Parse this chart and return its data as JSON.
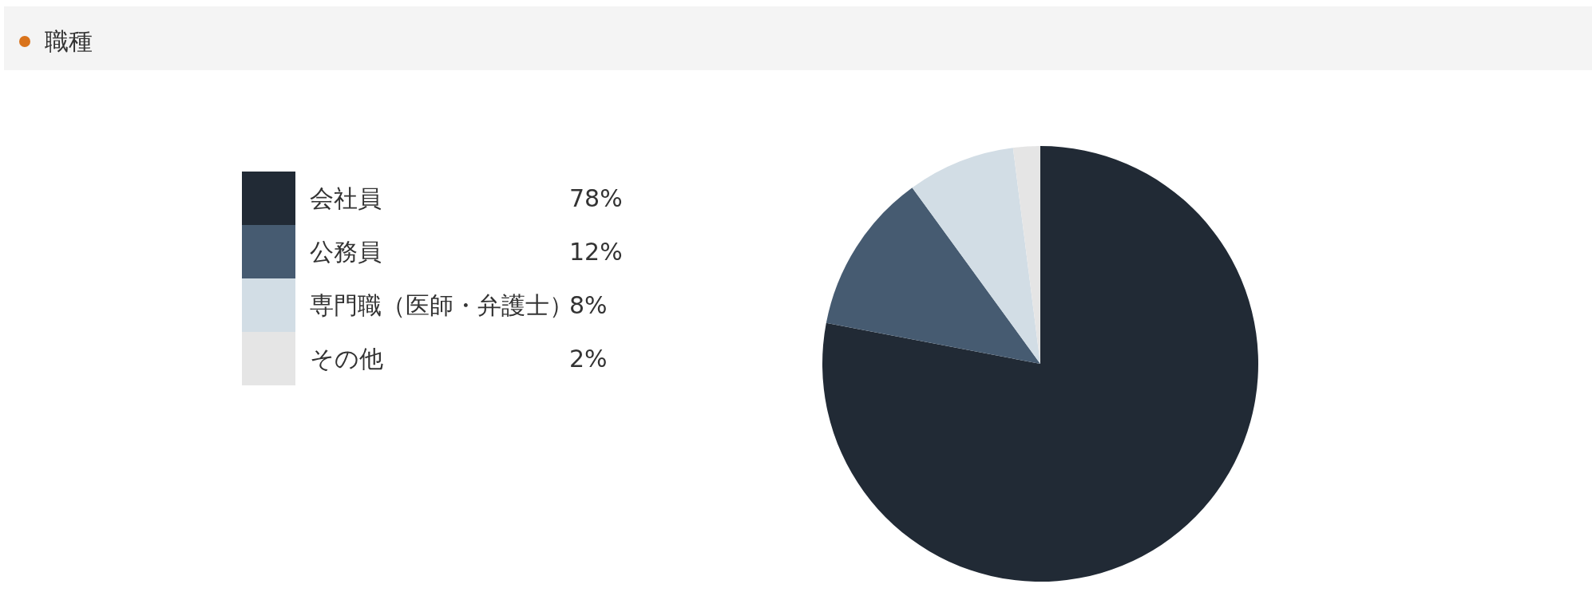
{
  "chart_data": {
    "type": "pie",
    "title": "職種",
    "categories": [
      "会社員",
      "公務員",
      "専門職（医師・弁護士）",
      "その他"
    ],
    "values": [
      78,
      12,
      8,
      2
    ],
    "colors": [
      "#212a35",
      "#465b71",
      "#d2dde5",
      "#e5e5e5"
    ],
    "value_labels": [
      "78%",
      "12%",
      "8%",
      "2%"
    ],
    "legend": "left"
  }
}
